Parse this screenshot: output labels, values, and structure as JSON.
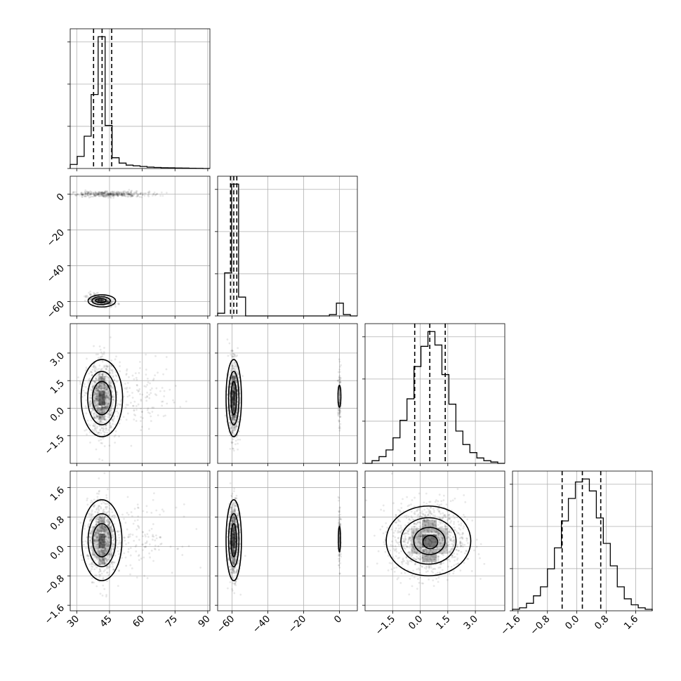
{
  "chart_data": {
    "type": "corner",
    "parameters": [
      {
        "range": [
          27,
          91
        ],
        "ticks": [
          30,
          45,
          60,
          75,
          90
        ],
        "tick_labels": [
          "30",
          "45",
          "60",
          "75",
          "90"
        ]
      },
      {
        "range": [
          -68,
          10
        ],
        "ticks": [
          -60,
          -40,
          -20,
          0
        ],
        "tick_labels": [
          "−60",
          "−40",
          "−20",
          "0"
        ]
      },
      {
        "range": [
          -3.0,
          4.6
        ],
        "ticks": [
          -1.5,
          0.0,
          1.5,
          3.0
        ],
        "tick_labels": [
          "−1.5",
          "0.0",
          "1.5",
          "3.0"
        ]
      },
      {
        "range": [
          -1.75,
          2.05
        ],
        "ticks": [
          -1.6,
          -0.8,
          0.0,
          0.8,
          1.6
        ],
        "tick_labels": [
          "−1.6",
          "−0.8",
          "0.0",
          "0.8",
          "1.6"
        ]
      }
    ],
    "histograms": [
      {
        "param": 0,
        "bin_edges": [
          27,
          30.2,
          33.4,
          36.6,
          39.8,
          43,
          46.2,
          49.4,
          52.6,
          55.8,
          59,
          62.2,
          65.4,
          68.6,
          71.8,
          75,
          78.2,
          81.4,
          84.6,
          87.8,
          91
        ],
        "counts": [
          0.03,
          0.09,
          0.24,
          0.55,
          0.98,
          0.32,
          0.08,
          0.04,
          0.025,
          0.02,
          0.015,
          0.01,
          0.008,
          0.006,
          0.005,
          0.004,
          0.003,
          0.002,
          0.001,
          0
        ],
        "quantiles": [
          37.7,
          41.6,
          46.0
        ]
      },
      {
        "param": 1,
        "bin_edges": [
          -68,
          -64.1,
          -60.2,
          -56.3,
          -52.4,
          -48.5,
          -44.6,
          -40.7,
          -36.8,
          -32.9,
          -29,
          -25.1,
          -21.2,
          -17.3,
          -13.4,
          -9.5,
          -5.6,
          -1.7,
          2.2,
          6.1,
          10
        ],
        "counts": [
          0.02,
          0.32,
          0.98,
          0.14,
          0,
          0,
          0,
          0,
          0,
          0,
          0,
          0,
          0,
          0,
          0,
          0,
          0.01,
          0.095,
          0.01,
          0
        ],
        "quantiles": [
          -60.8,
          -59.0,
          -57.3
        ]
      },
      {
        "param": 2,
        "bin_edges": [
          -3.0,
          -2.62,
          -2.24,
          -1.86,
          -1.48,
          -1.1,
          -0.72,
          -0.34,
          0.04,
          0.42,
          0.8,
          1.18,
          1.56,
          1.94,
          2.32,
          2.7,
          3.08,
          3.46,
          3.84,
          4.22,
          4.6
        ],
        "counts": [
          0,
          0.02,
          0.05,
          0.1,
          0.19,
          0.32,
          0.48,
          0.72,
          0.87,
          0.98,
          0.88,
          0.66,
          0.44,
          0.24,
          0.14,
          0.08,
          0.04,
          0.02,
          0.01,
          0
        ],
        "quantiles": [
          -0.3,
          0.52,
          1.36
        ]
      },
      {
        "param": 3,
        "bin_edges": [
          -1.75,
          -1.56,
          -1.37,
          -1.18,
          -0.99,
          -0.8,
          -0.61,
          -0.42,
          -0.23,
          -0.04,
          0.15,
          0.34,
          0.53,
          0.72,
          0.91,
          1.1,
          1.29,
          1.48,
          1.67,
          1.86,
          2.05
        ],
        "counts": [
          0.01,
          0.02,
          0.05,
          0.1,
          0.16,
          0.28,
          0.42,
          0.6,
          0.75,
          0.86,
          0.88,
          0.8,
          0.62,
          0.45,
          0.3,
          0.16,
          0.08,
          0.04,
          0.02,
          0.01
        ],
        "quantiles": [
          -0.4,
          0.15,
          0.65
        ]
      }
    ],
    "pairs": [
      {
        "x": 0,
        "y": 1,
        "blobs": [
          {
            "cx": 45,
            "cy": 0,
            "sx": 9,
            "sy": 0.8,
            "n": 420
          },
          {
            "cx": 41,
            "cy": -59.5,
            "sx": 3.2,
            "sy": 1.6,
            "n": 260,
            "rho": -0.5
          }
        ],
        "contours": [
          {
            "cx": 41.5,
            "cy": -59.6,
            "rx": 6.3,
            "ry": 3.4
          },
          {
            "cx": 41.2,
            "cy": -59.5,
            "rx": 4.2,
            "ry": 2.2
          },
          {
            "cx": 41,
            "cy": -59.4,
            "rx": 2.4,
            "ry": 1.2
          }
        ],
        "cells": [
          {
            "x": 41,
            "y": -59.5,
            "w": 3,
            "h": 2.6,
            "v": 0.95
          },
          {
            "x": 44,
            "y": -60.5,
            "w": 3,
            "h": 2.2,
            "v": 0.55
          },
          {
            "x": 38,
            "y": -59,
            "w": 3,
            "h": 2.4,
            "v": 0.45
          }
        ]
      },
      {
        "x": 0,
        "y": 2,
        "blobs": [
          {
            "cx": 41.5,
            "cy": 0.55,
            "sx": 3.3,
            "sy": 1.0,
            "n": 900
          },
          {
            "cx": 58,
            "cy": 0.6,
            "sx": 9,
            "sy": 0.9,
            "n": 160
          }
        ],
        "contours": [
          {
            "cx": 41.5,
            "cy": 0.55,
            "rx": 9.5,
            "ry": 2.1
          },
          {
            "cx": 41.5,
            "cy": 0.55,
            "rx": 6.5,
            "ry": 1.45
          },
          {
            "cx": 41.5,
            "cy": 0.55,
            "rx": 4.3,
            "ry": 0.9
          }
        ],
        "cells": [
          {
            "x": 41.5,
            "y": 0.55,
            "w": 3,
            "h": 0.8,
            "v": 0.95
          },
          {
            "x": 41.5,
            "y": 1.4,
            "w": 3,
            "h": 0.7,
            "v": 0.5
          },
          {
            "x": 41.5,
            "y": -0.3,
            "w": 3,
            "h": 0.7,
            "v": 0.5
          },
          {
            "x": 38.5,
            "y": 0.55,
            "w": 3,
            "h": 1.4,
            "v": 0.3
          },
          {
            "x": 44.5,
            "y": 0.55,
            "w": 3,
            "h": 1.4,
            "v": 0.3
          }
        ]
      },
      {
        "x": 1,
        "y": 2,
        "blobs": [
          {
            "cx": -59,
            "cy": 0.55,
            "sx": 1.5,
            "sy": 1.0,
            "n": 900
          },
          {
            "cx": 0,
            "cy": 0.6,
            "sx": 0.4,
            "sy": 0.8,
            "n": 110
          }
        ],
        "contours": [
          {
            "cx": -59,
            "cy": 0.55,
            "rx": 4.3,
            "ry": 2.1
          },
          {
            "cx": -59,
            "cy": 0.55,
            "rx": 2.9,
            "ry": 1.45
          },
          {
            "cx": -59,
            "cy": 0.55,
            "rx": 1.5,
            "ry": 0.9
          },
          {
            "cx": 0,
            "cy": 0.65,
            "rx": 0.8,
            "ry": 0.6
          }
        ],
        "cells": [
          {
            "x": -59,
            "y": 0.55,
            "w": 1.8,
            "h": 0.8,
            "v": 0.95
          },
          {
            "x": -59,
            "y": 1.4,
            "w": 1.8,
            "h": 0.7,
            "v": 0.5
          },
          {
            "x": -59,
            "y": -0.3,
            "w": 1.8,
            "h": 0.7,
            "v": 0.5
          }
        ]
      },
      {
        "x": 2,
        "y": 3,
        "blobs": [
          {
            "cx": 0.45,
            "cy": 0.2,
            "sx": 1.0,
            "sy": 0.5,
            "n": 1100
          }
        ],
        "contours": [
          {
            "cx": 0.45,
            "cy": 0.15,
            "rx": 2.3,
            "ry": 0.95
          },
          {
            "cx": 0.45,
            "cy": 0.15,
            "rx": 1.5,
            "ry": 0.63
          },
          {
            "cx": 0.5,
            "cy": 0.15,
            "rx": 0.85,
            "ry": 0.37
          },
          {
            "cx": 0.55,
            "cy": 0.12,
            "rx": 0.4,
            "ry": 0.18
          }
        ],
        "cells": [
          {
            "x": 0.5,
            "y": 0.15,
            "w": 0.8,
            "h": 0.35,
            "v": 0.95
          },
          {
            "x": 0.5,
            "y": 0.55,
            "w": 0.8,
            "h": 0.35,
            "v": 0.5
          },
          {
            "x": 0.5,
            "y": -0.25,
            "w": 0.8,
            "h": 0.35,
            "v": 0.5
          },
          {
            "x": -0.2,
            "y": 0.15,
            "w": 0.6,
            "h": 0.7,
            "v": 0.35
          },
          {
            "x": 1.2,
            "y": 0.15,
            "w": 0.6,
            "h": 0.7,
            "v": 0.35
          }
        ]
      },
      {
        "x": 0,
        "y": 3,
        "blobs": [
          {
            "cx": 41.5,
            "cy": 0.2,
            "sx": 3.3,
            "sy": 0.5,
            "n": 900
          },
          {
            "cx": 58,
            "cy": 0.2,
            "sx": 9,
            "sy": 0.45,
            "n": 150
          }
        ],
        "contours": [
          {
            "cx": 41.5,
            "cy": 0.17,
            "rx": 9.2,
            "ry": 1.1
          },
          {
            "cx": 41.5,
            "cy": 0.17,
            "rx": 6.3,
            "ry": 0.72
          },
          {
            "cx": 41.5,
            "cy": 0.17,
            "rx": 4.2,
            "ry": 0.45
          }
        ],
        "cells": [
          {
            "x": 41.5,
            "y": 0.15,
            "w": 3,
            "h": 0.4,
            "v": 0.95
          },
          {
            "x": 41.5,
            "y": 0.6,
            "w": 3,
            "h": 0.4,
            "v": 0.5
          },
          {
            "x": 41.5,
            "y": -0.3,
            "w": 3,
            "h": 0.4,
            "v": 0.5
          },
          {
            "x": 38.5,
            "y": 0.15,
            "w": 3,
            "h": 0.8,
            "v": 0.3
          },
          {
            "x": 44.5,
            "y": 0.15,
            "w": 3,
            "h": 0.8,
            "v": 0.3
          }
        ]
      },
      {
        "x": 1,
        "y": 3,
        "blobs": [
          {
            "cx": -59,
            "cy": 0.2,
            "sx": 1.5,
            "sy": 0.5,
            "n": 900
          },
          {
            "cx": 0,
            "cy": 0.2,
            "sx": 0.4,
            "sy": 0.4,
            "n": 110
          }
        ],
        "contours": [
          {
            "cx": -59,
            "cy": 0.17,
            "rx": 4.3,
            "ry": 1.1
          },
          {
            "cx": -59,
            "cy": 0.17,
            "rx": 2.9,
            "ry": 0.72
          },
          {
            "cx": -59,
            "cy": 0.17,
            "rx": 1.5,
            "ry": 0.45
          },
          {
            "cx": 0,
            "cy": 0.2,
            "rx": 0.6,
            "ry": 0.35
          }
        ],
        "cells": [
          {
            "x": -59,
            "y": 0.15,
            "w": 1.8,
            "h": 0.4,
            "v": 0.95
          },
          {
            "x": -59,
            "y": 0.6,
            "w": 1.8,
            "h": 0.4,
            "v": 0.5
          },
          {
            "x": -59,
            "y": -0.3,
            "w": 1.8,
            "h": 0.4,
            "v": 0.5
          }
        ]
      }
    ]
  }
}
